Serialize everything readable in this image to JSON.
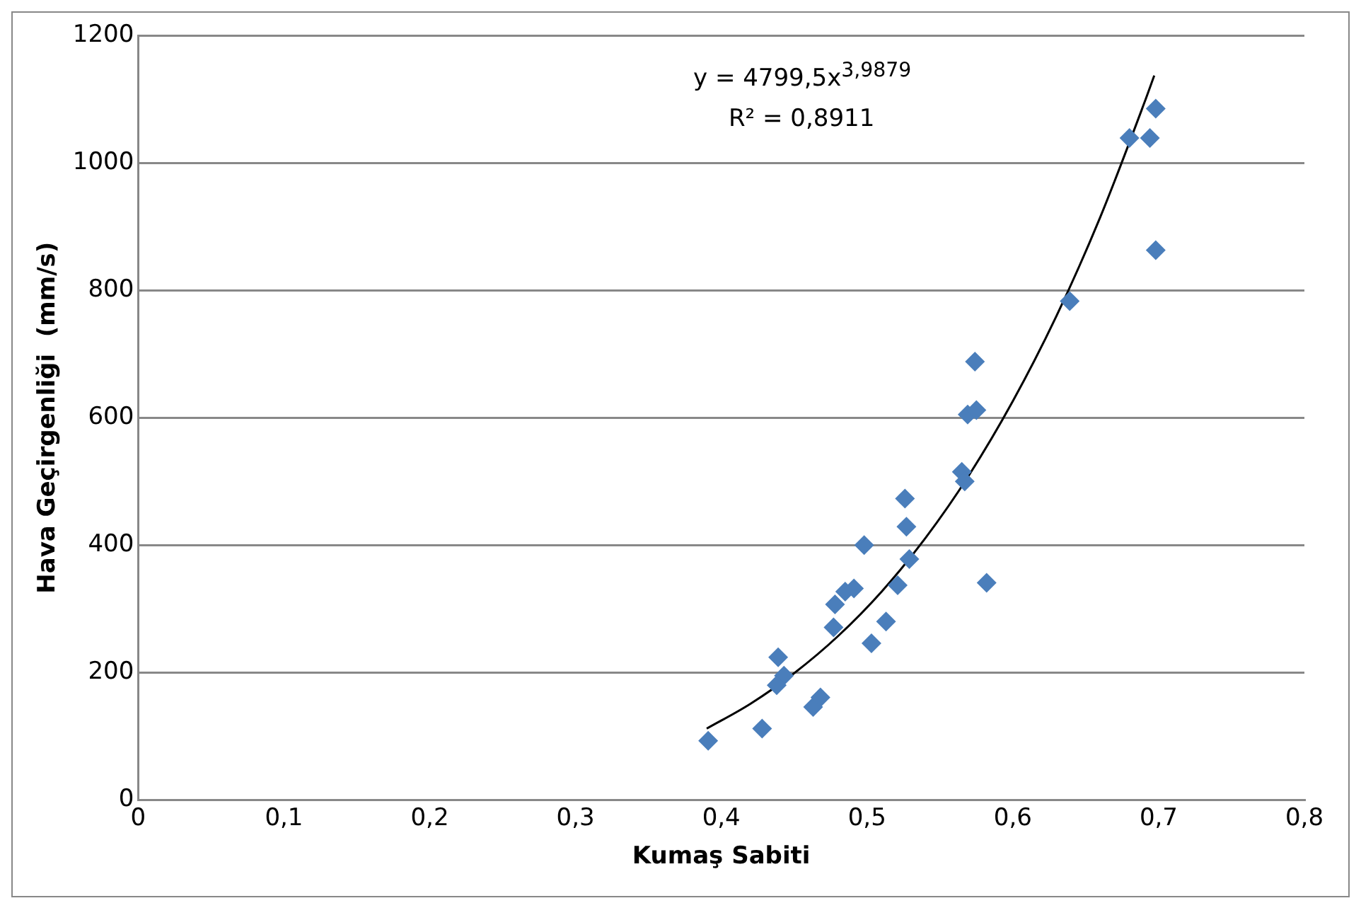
{
  "chart_data": {
    "type": "scatter",
    "xlabel": "Kumaş Sabiti",
    "ylabel": "Hava Geçirgenliği  (mm/s)",
    "x": [
      0.391,
      0.428,
      0.439,
      0.443,
      0.438,
      0.463,
      0.468,
      0.477,
      0.478,
      0.485,
      0.491,
      0.498,
      0.503,
      0.513,
      0.521,
      0.527,
      0.526,
      0.529,
      0.565,
      0.567,
      0.569,
      0.575,
      0.574,
      0.582,
      0.639,
      0.68,
      0.694,
      0.698,
      0.698
    ],
    "series": [
      {
        "color": "#4a7ebb",
        "marker": "diamond",
        "values": [
          93,
          112,
          224,
          195,
          180,
          146,
          161,
          271,
          307,
          327,
          332,
          400,
          246,
          280,
          337,
          429,
          473,
          378,
          515,
          500,
          605,
          612,
          688,
          341,
          783,
          1039,
          1039,
          1085,
          863
        ]
      },
      {
        "type": "line",
        "color": "#000000",
        "marker": "none",
        "x": [
          0.39,
          0.42,
          0.45,
          0.48,
          0.51,
          0.54,
          0.57,
          0.6,
          0.63,
          0.66,
          0.69,
          0.697
        ],
        "values": [
          112,
          151,
          199,
          257,
          327,
          411,
          510,
          626,
          760,
          915,
          1093,
          1137
        ]
      }
    ],
    "xlim": [
      0,
      0.8
    ],
    "xticks": [
      0,
      {
        "value": 0.1,
        "label": "0,1"
      },
      {
        "value": 0.2,
        "label": "0,2"
      },
      {
        "value": 0.3,
        "label": "0,3"
      },
      {
        "value": 0.4,
        "label": "0,4"
      },
      {
        "value": 0.5,
        "label": "0,5"
      },
      {
        "value": 0.6,
        "label": "0,6"
      },
      {
        "value": 0.7,
        "label": "0,7"
      },
      {
        "value": 0.8,
        "label": "0,8"
      }
    ],
    "ylim": [
      0,
      1200
    ],
    "yticks": [
      0,
      200,
      400,
      600,
      800,
      1000,
      1200
    ],
    "grid": "y",
    "legend": false,
    "annotations": [
      "y = 4799,5x$^{3,9879}$",
      "R² = 0,8911"
    ]
  }
}
